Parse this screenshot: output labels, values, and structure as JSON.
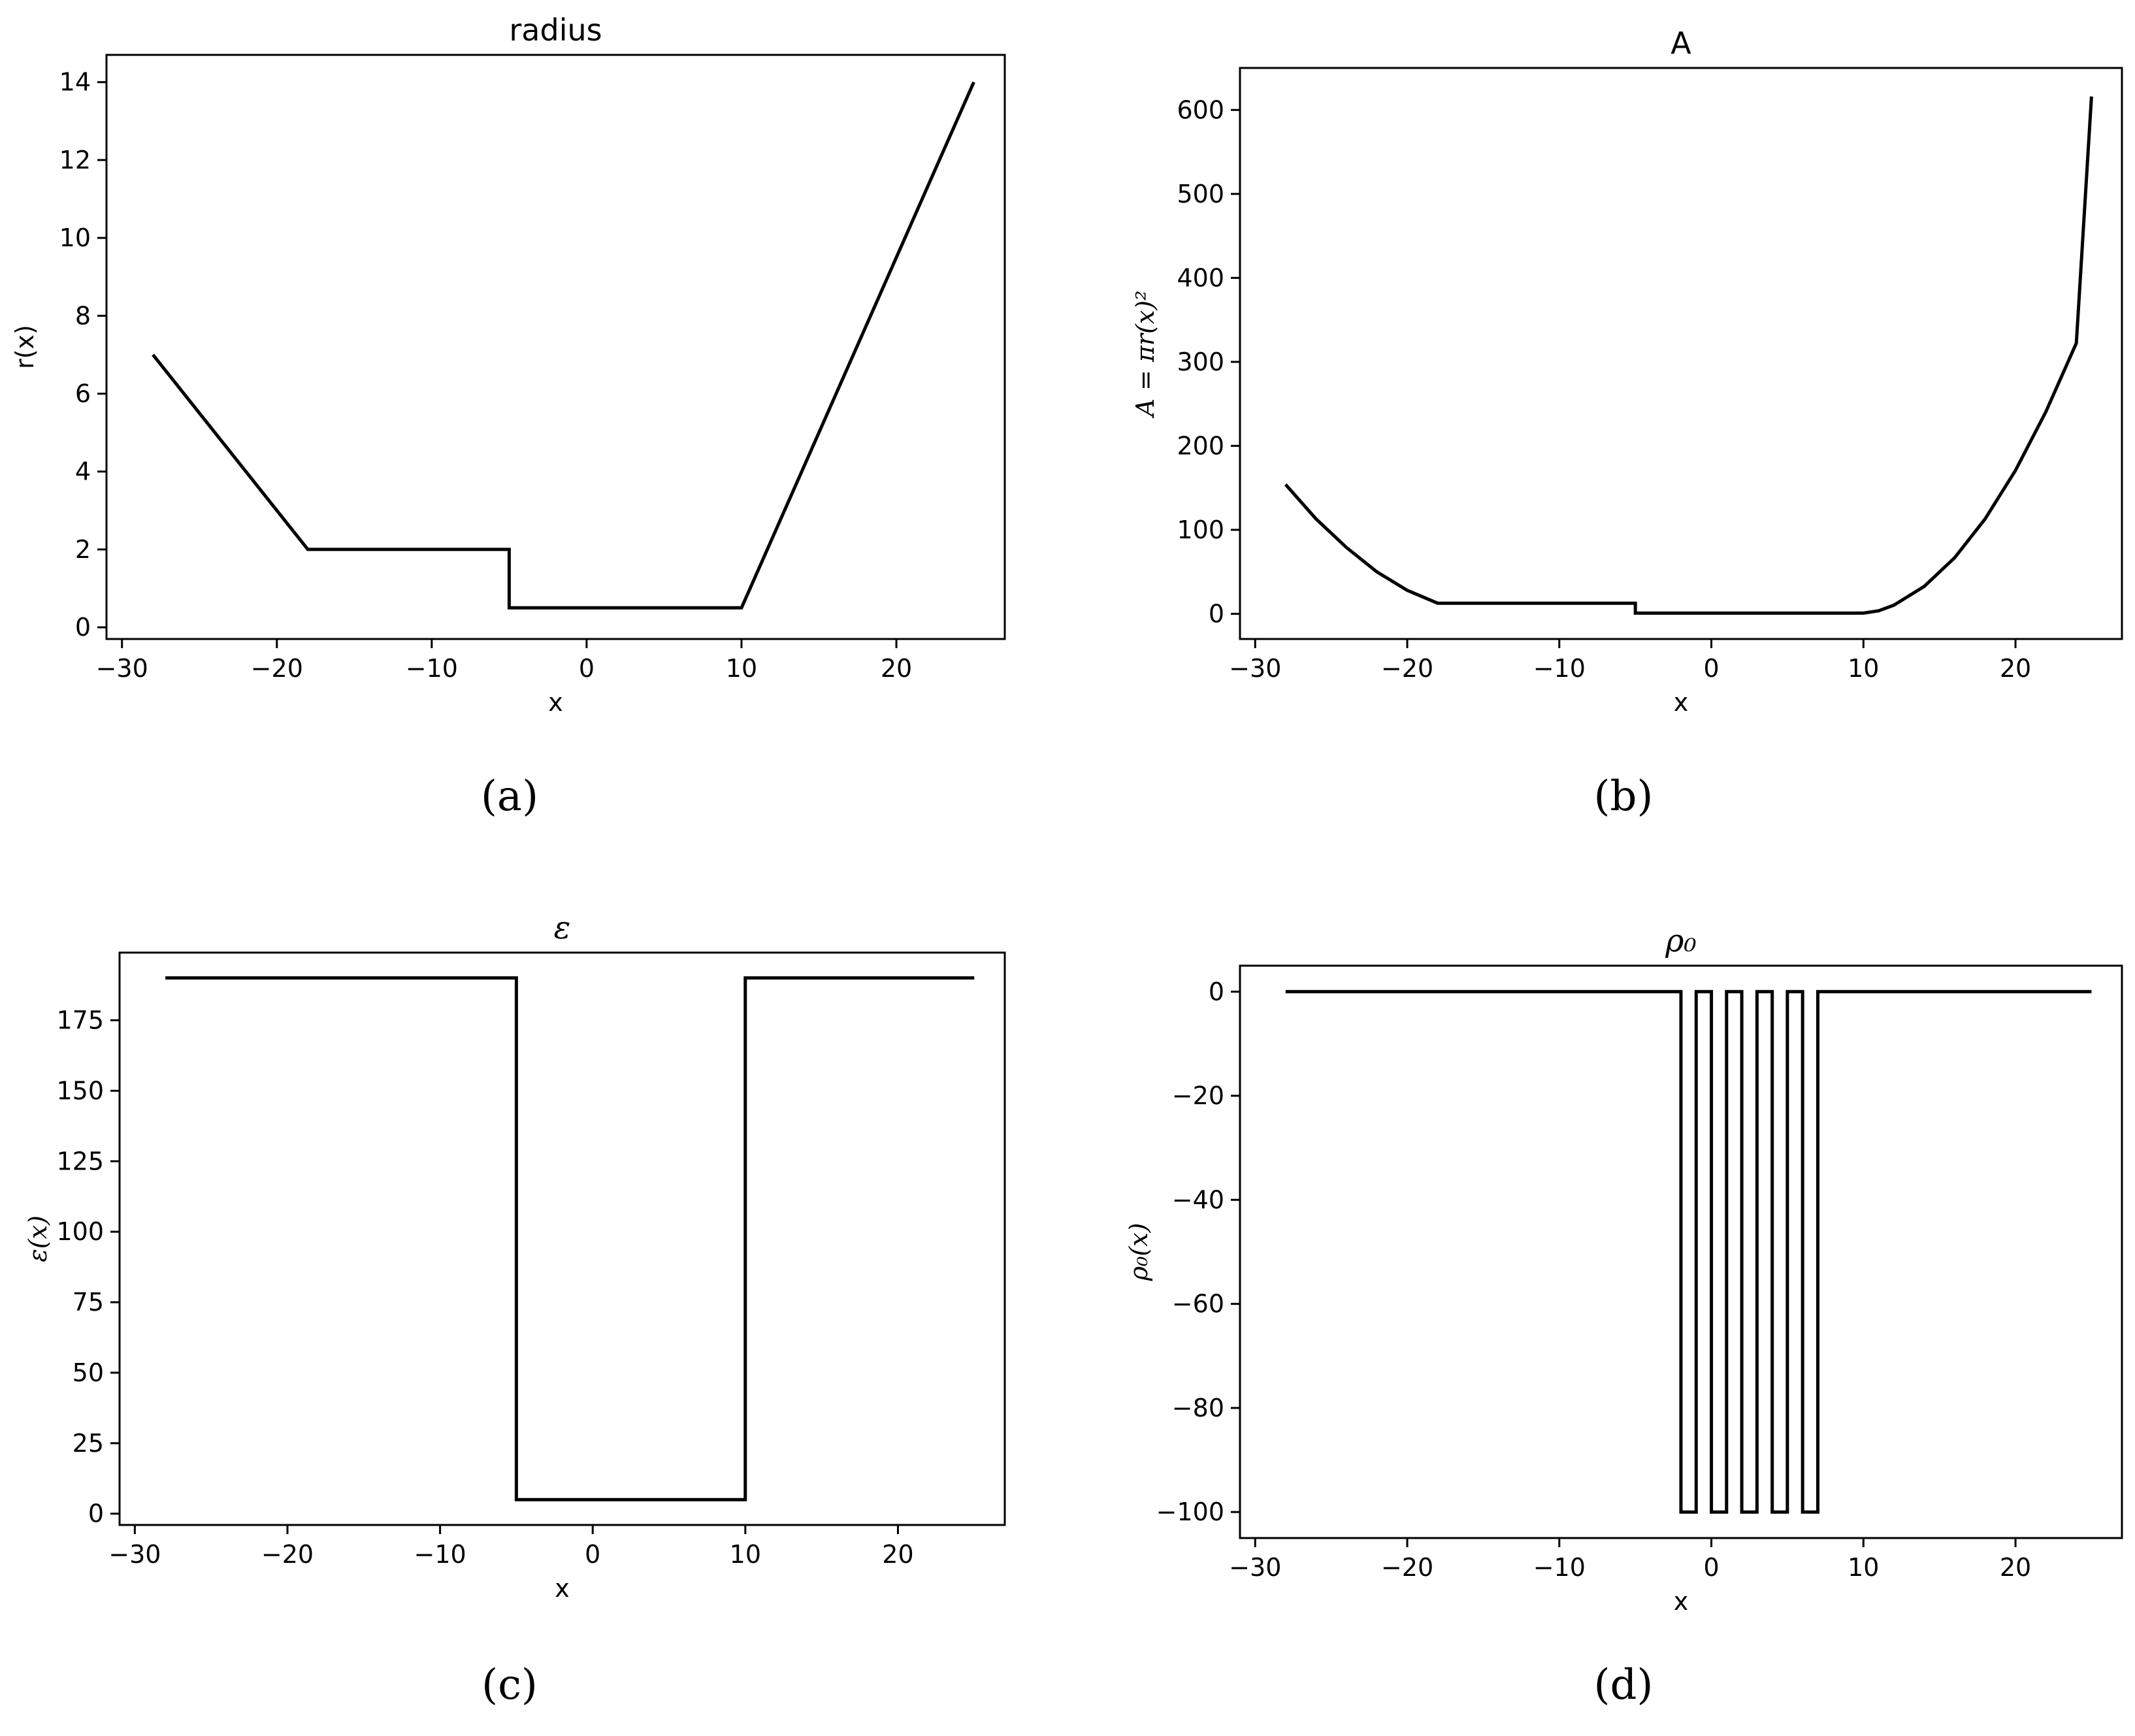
{
  "chart_data": [
    {
      "type": "line",
      "title": "radius",
      "xlabel": "x",
      "ylabel": "r(x)",
      "caption": "(a)",
      "xlim": [
        -31,
        27
      ],
      "ylim": [
        -0.3,
        14.7
      ],
      "xticks": [
        -30,
        -20,
        -10,
        0,
        10,
        20
      ],
      "xtick_labels": [
        "−30",
        "−20",
        "−10",
        "0",
        "10",
        "20"
      ],
      "yticks": [
        0,
        2,
        4,
        6,
        8,
        10,
        12,
        14
      ],
      "ytick_labels": [
        "0",
        "2",
        "4",
        "6",
        "8",
        "10",
        "12",
        "14"
      ],
      "grid": false,
      "color": "#000000",
      "series": [
        {
          "x": [
            -28,
            -18,
            -5,
            -5,
            10,
            25
          ],
          "y": [
            7,
            2,
            2,
            0.5,
            0.5,
            14
          ]
        }
      ]
    },
    {
      "type": "line",
      "title": "A",
      "xlabel": "x",
      "ylabel": "A = πr(x)²",
      "caption": "(b)",
      "xlim": [
        -31,
        27
      ],
      "ylim": [
        -30,
        650
      ],
      "xticks": [
        -30,
        -20,
        -10,
        0,
        10,
        20
      ],
      "xtick_labels": [
        "−30",
        "−20",
        "−10",
        "0",
        "10",
        "20"
      ],
      "yticks": [
        0,
        100,
        200,
        300,
        400,
        500,
        600
      ],
      "ytick_labels": [
        "0",
        "100",
        "200",
        "300",
        "400",
        "500",
        "600"
      ],
      "grid": false,
      "color": "#000000",
      "series": [
        {
          "x": [
            -28,
            -26,
            -24,
            -22,
            -20,
            -18,
            -5,
            -5,
            10,
            11,
            12,
            14,
            16,
            18,
            20,
            22,
            24,
            25
          ],
          "y": [
            154,
            113,
            79,
            50,
            28,
            12.6,
            12.6,
            0.8,
            0.8,
            3.6,
            10.3,
            32.6,
            66.8,
            112.9,
            170.8,
            240.6,
            322.3,
            616
          ]
        }
      ]
    },
    {
      "type": "line",
      "title": "ε",
      "xlabel": "x",
      "ylabel": "ε(x)",
      "caption": "(c)",
      "xlim": [
        -31,
        27
      ],
      "ylim": [
        -4,
        199
      ],
      "xticks": [
        -30,
        -20,
        -10,
        0,
        10,
        20
      ],
      "xtick_labels": [
        "−30",
        "−20",
        "−10",
        "0",
        "10",
        "20"
      ],
      "yticks": [
        0,
        25,
        50,
        75,
        100,
        125,
        150,
        175
      ],
      "ytick_labels": [
        "0",
        "25",
        "50",
        "75",
        "100",
        "125",
        "150",
        "175"
      ],
      "grid": false,
      "color": "#000000",
      "series": [
        {
          "x": [
            -28,
            -5,
            -5,
            10,
            10,
            25
          ],
          "y": [
            190,
            190,
            5,
            5,
            190,
            190
          ]
        }
      ]
    },
    {
      "type": "line",
      "title": "ρ₀",
      "xlabel": "x",
      "ylabel": "ρ₀(x)",
      "caption": "(d)",
      "xlim": [
        -31,
        27
      ],
      "ylim": [
        -105,
        5
      ],
      "xticks": [
        -30,
        -20,
        -10,
        0,
        10,
        20
      ],
      "xtick_labels": [
        "−30",
        "−20",
        "−10",
        "0",
        "10",
        "20"
      ],
      "yticks": [
        0,
        -20,
        -40,
        -60,
        -80,
        -100
      ],
      "ytick_labels": [
        "0",
        "−20",
        "−40",
        "−60",
        "−80",
        "−100"
      ],
      "grid": false,
      "color": "#000000",
      "series": [
        {
          "x": [
            -28,
            -2,
            -2,
            -1,
            -1,
            0,
            0,
            1,
            1,
            2,
            2,
            3,
            3,
            4,
            4,
            5,
            5,
            6,
            6,
            7,
            7,
            25
          ],
          "y": [
            0,
            0,
            -100,
            -100,
            0,
            0,
            -100,
            -100,
            0,
            0,
            -100,
            -100,
            0,
            0,
            -100,
            -100,
            0,
            0,
            -100,
            -100,
            0,
            0
          ]
        }
      ]
    }
  ]
}
